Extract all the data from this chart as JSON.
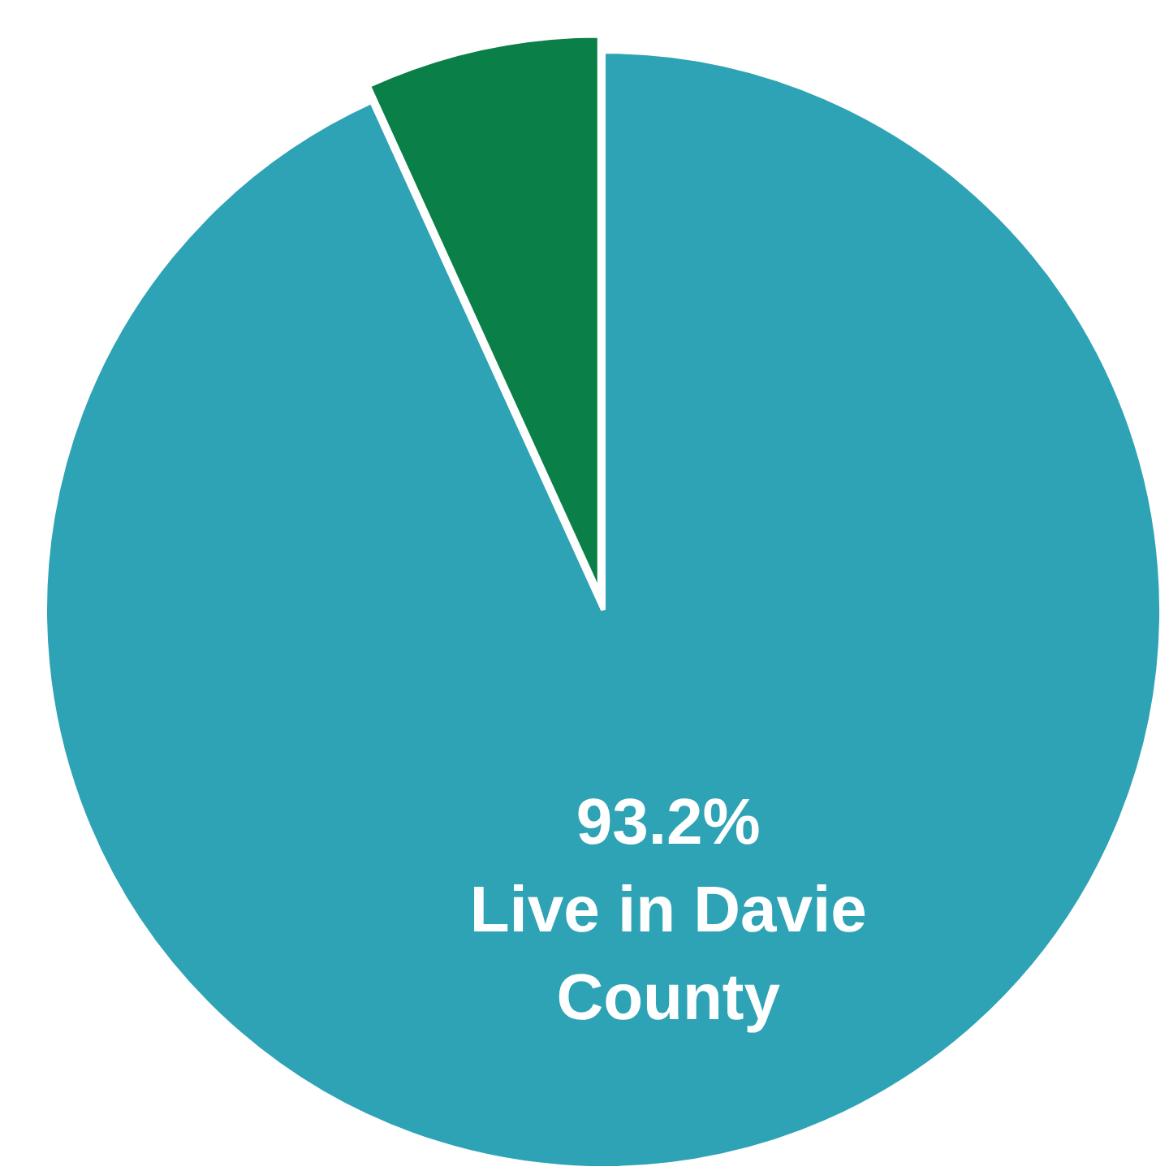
{
  "chart_data": {
    "type": "pie",
    "categories": [
      "Live in Davie County",
      null
    ],
    "values": [
      93.2,
      6.8
    ],
    "colors": [
      "#2ea3b5",
      "#0a7f48"
    ],
    "value_labels": [
      "93.2%",
      null
    ]
  }
}
